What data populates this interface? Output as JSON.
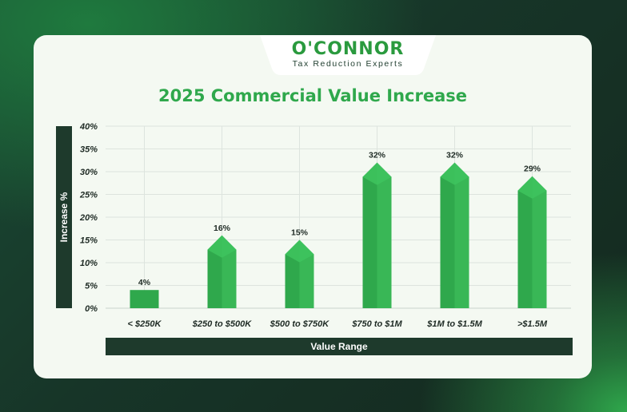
{
  "brand": {
    "name": "O'CONNOR",
    "tagline": "Tax Reduction Experts"
  },
  "colors": {
    "bar_front": "#2fa84c",
    "bar_side": "#39b756",
    "bar_top": "#3ec45e",
    "title": "#2fa84c",
    "axis_band": "#1e3a2c"
  },
  "chart_data": {
    "type": "bar",
    "title": "2025 Commercial Value Increase",
    "xlabel": "Value Range",
    "ylabel": "Increase %",
    "categories": [
      "< $250K",
      "$250 to $500K",
      "$500 to $750K",
      "$750 to $1M",
      "$1M to $1.5M",
      ">$1.5M"
    ],
    "values": [
      4,
      16,
      15,
      32,
      32,
      29
    ],
    "data_labels": [
      "4%",
      "16%",
      "15%",
      "32%",
      "32%",
      "29%"
    ],
    "yticks": [
      "0%",
      "5%",
      "10%",
      "15%",
      "20%",
      "25%",
      "30%",
      "35%",
      "40%"
    ],
    "ylim": [
      0,
      40
    ],
    "grid": true
  }
}
